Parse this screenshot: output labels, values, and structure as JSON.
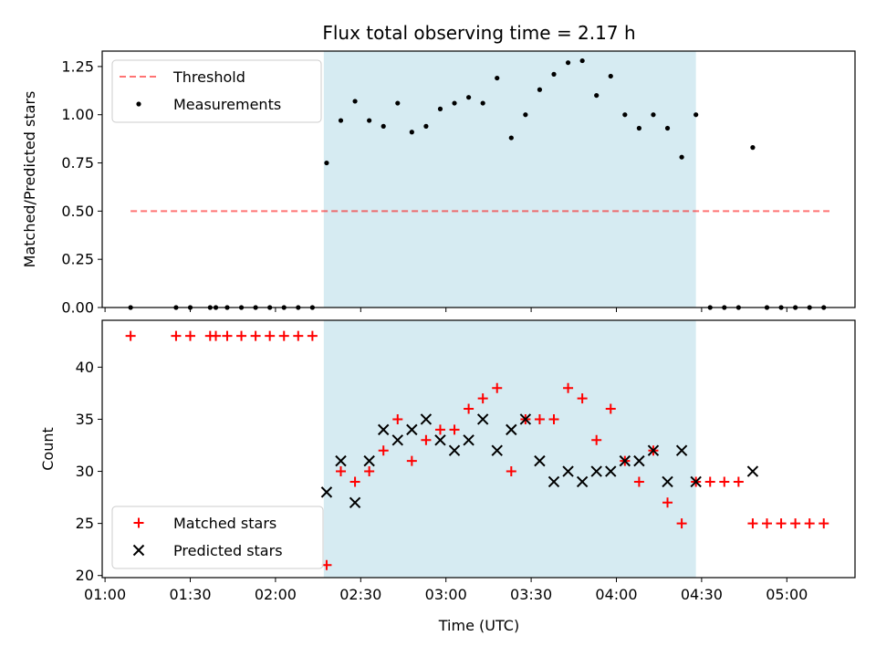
{
  "chart_data": {
    "type": "scatter",
    "title": "Flux total observing time = 2.17 h",
    "xlabel": "Time (UTC)",
    "x_ticks": [
      "01:00",
      "01:30",
      "02:00",
      "02:30",
      "03:00",
      "03:30",
      "04:00",
      "04:30",
      "05:00"
    ],
    "xlim": [
      "00:59",
      "05:24"
    ],
    "shaded_span": {
      "from": "02:17",
      "to": "04:28",
      "color": "#add8e6"
    },
    "panels": [
      {
        "ylabel": "Matched/Predicted stars",
        "ylim": [
          0,
          1.33
        ],
        "y_ticks": [
          "0.00",
          "0.25",
          "0.50",
          "0.75",
          "1.00",
          "1.25"
        ],
        "legend_location": "upper left",
        "threshold": {
          "name": "Threshold",
          "value": 0.5,
          "x_from": "01:09",
          "x_to": "05:15",
          "color": "#ff0000",
          "style": "dashed"
        },
        "series": [
          {
            "name": "Measurements",
            "marker": "dot",
            "color": "#000000",
            "x": [
              "01:09",
              "01:25",
              "01:30",
              "01:37",
              "01:39",
              "01:43",
              "01:48",
              "01:53",
              "01:58",
              "02:03",
              "02:08",
              "02:13",
              "02:18",
              "02:23",
              "02:28",
              "02:33",
              "02:38",
              "02:43",
              "02:48",
              "02:53",
              "02:58",
              "03:03",
              "03:08",
              "03:13",
              "03:18",
              "03:23",
              "03:28",
              "03:33",
              "03:38",
              "03:43",
              "03:48",
              "03:53",
              "03:58",
              "04:03",
              "04:08",
              "04:13",
              "04:18",
              "04:23",
              "04:28",
              "04:33",
              "04:38",
              "04:43",
              "04:48",
              "04:53",
              "04:58",
              "05:03",
              "05:08",
              "05:13"
            ],
            "y": [
              0,
              0,
              0,
              0,
              0,
              0,
              0,
              0,
              0,
              0,
              0,
              0,
              0.75,
              0.97,
              1.07,
              0.97,
              0.94,
              1.06,
              0.91,
              0.94,
              1.03,
              1.06,
              1.09,
              1.06,
              1.19,
              0.88,
              1.0,
              1.13,
              1.21,
              1.27,
              1.28,
              1.1,
              1.2,
              1.0,
              0.93,
              1.0,
              0.93,
              0.78,
              1.0,
              0,
              0,
              0,
              0.83,
              0,
              0,
              0,
              0,
              0
            ]
          }
        ]
      },
      {
        "ylabel": "Count",
        "ylim": [
          19.8,
          44.5
        ],
        "y_ticks": [
          "20",
          "25",
          "30",
          "35",
          "40"
        ],
        "legend_location": "lower left",
        "series": [
          {
            "name": "Matched stars",
            "marker": "plus",
            "color": "#ff0000",
            "x": [
              "01:09",
              "01:25",
              "01:30",
              "01:37",
              "01:39",
              "01:43",
              "01:48",
              "01:53",
              "01:58",
              "02:03",
              "02:08",
              "02:13",
              "02:18",
              "02:23",
              "02:28",
              "02:33",
              "02:38",
              "02:43",
              "02:48",
              "02:53",
              "02:58",
              "03:03",
              "03:08",
              "03:13",
              "03:18",
              "03:23",
              "03:28",
              "03:33",
              "03:38",
              "03:43",
              "03:48",
              "03:53",
              "03:58",
              "04:03",
              "04:08",
              "04:13",
              "04:18",
              "04:23",
              "04:28",
              "04:33",
              "04:38",
              "04:43",
              "04:48",
              "04:53",
              "04:58",
              "05:03",
              "05:08",
              "05:13"
            ],
            "y": [
              43,
              43,
              43,
              43,
              43,
              43,
              43,
              43,
              43,
              43,
              43,
              43,
              21,
              30,
              29,
              30,
              32,
              35,
              31,
              33,
              34,
              34,
              36,
              37,
              38,
              30,
              35,
              35,
              35,
              38,
              37,
              33,
              36,
              31,
              29,
              32,
              27,
              25,
              29,
              29,
              29,
              29,
              25,
              25,
              25,
              25,
              25,
              25
            ]
          },
          {
            "name": "Predicted stars",
            "marker": "x",
            "color": "#000000",
            "x": [
              "02:18",
              "02:23",
              "02:28",
              "02:33",
              "02:38",
              "02:43",
              "02:48",
              "02:53",
              "02:58",
              "03:03",
              "03:08",
              "03:13",
              "03:18",
              "03:23",
              "03:28",
              "03:33",
              "03:38",
              "03:43",
              "03:48",
              "03:53",
              "03:58",
              "04:03",
              "04:08",
              "04:13",
              "04:18",
              "04:23",
              "04:28",
              "04:48"
            ],
            "y": [
              28,
              31,
              27,
              31,
              34,
              33,
              34,
              35,
              33,
              32,
              33,
              35,
              32,
              34,
              35,
              31,
              29,
              30,
              29,
              30,
              30,
              31,
              31,
              32,
              29,
              32,
              29,
              30
            ]
          }
        ]
      }
    ]
  }
}
